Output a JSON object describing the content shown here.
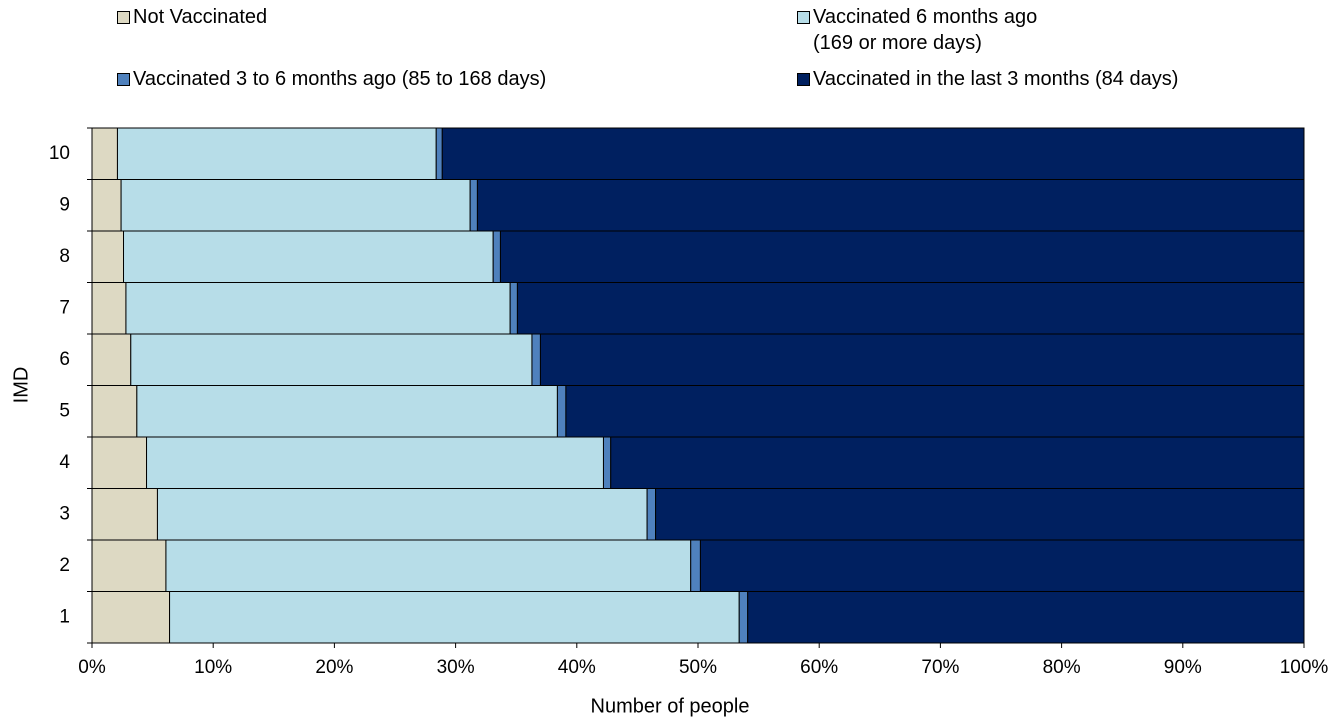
{
  "chart_data": {
    "type": "stacked-bar-horizontal",
    "x_label": "Number of people",
    "y_label": "IMD",
    "categories": [
      "1",
      "2",
      "3",
      "4",
      "5",
      "6",
      "7",
      "8",
      "9",
      "10"
    ],
    "series": [
      {
        "name": "Not Vaccinated",
        "color": "#ddd9c3",
        "values": [
          6.4,
          6.1,
          5.4,
          4.5,
          3.7,
          3.2,
          2.8,
          2.6,
          2.4,
          2.1
        ]
      },
      {
        "name": "Vaccinated 6 months ago\n(169 or more days)",
        "color": "#b7dde8",
        "values": [
          47.0,
          43.3,
          40.4,
          37.7,
          34.7,
          33.1,
          31.7,
          30.5,
          28.8,
          26.3
        ]
      },
      {
        "name": "Vaccinated 3 to 6 months ago (85 to 168 days)",
        "color": "#4f81bd",
        "values": [
          0.7,
          0.8,
          0.7,
          0.6,
          0.7,
          0.7,
          0.6,
          0.6,
          0.6,
          0.5
        ]
      },
      {
        "name": "Vaccinated in the last 3 months (84 days)",
        "color": "#002060",
        "values": [
          45.9,
          49.8,
          53.5,
          57.2,
          60.9,
          63.0,
          64.9,
          66.3,
          68.2,
          71.1
        ]
      }
    ],
    "xlim": [
      0,
      100
    ],
    "xticks": [
      {
        "value": 0,
        "label": "0%"
      },
      {
        "value": 10,
        "label": "10%"
      },
      {
        "value": 20,
        "label": "20%"
      },
      {
        "value": 30,
        "label": "30%"
      },
      {
        "value": 40,
        "label": "40%"
      },
      {
        "value": 50,
        "label": "50%"
      },
      {
        "value": 60,
        "label": "60%"
      },
      {
        "value": 70,
        "label": "70%"
      },
      {
        "value": 80,
        "label": "80%"
      },
      {
        "value": 90,
        "label": "90%"
      },
      {
        "value": 100,
        "label": "100%"
      }
    ],
    "grid": false
  }
}
